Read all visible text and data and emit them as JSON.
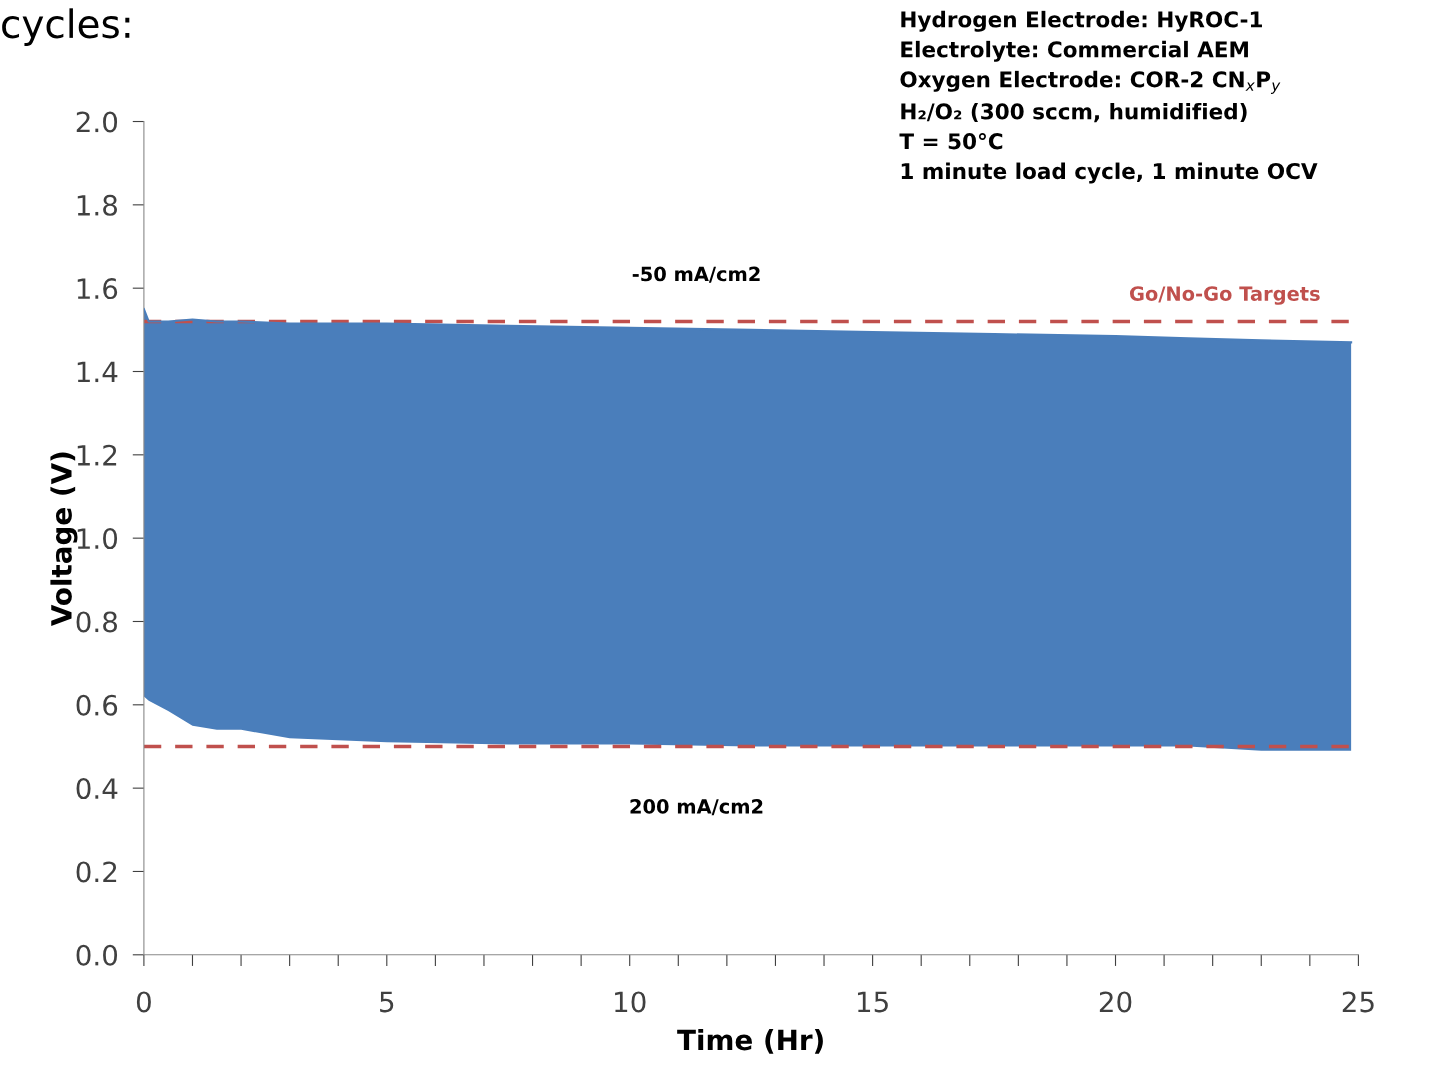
{
  "chart_data": {
    "type": "line",
    "xlabel": "Time (Hr)",
    "ylabel": "Voltage (V)",
    "x": [
      0,
      0.1,
      0.5,
      1,
      1.5,
      2,
      3,
      5,
      7.5,
      10,
      12.5,
      15,
      17.5,
      20,
      21.5,
      23,
      24.85
    ],
    "series": [
      {
        "color": "#4a7ebb",
        "values": [
          1.55,
          1.52,
          1.52,
          1.525,
          1.52,
          1.52,
          1.515,
          1.515,
          1.51,
          1.505,
          1.5,
          1.495,
          1.49,
          1.485,
          1.48,
          1.475,
          1.47
        ],
        "upper": [
          1.55,
          1.52,
          1.52,
          1.525,
          1.52,
          1.52,
          1.515,
          1.515,
          1.51,
          1.505,
          1.5,
          1.495,
          1.49,
          1.485,
          1.48,
          1.475,
          1.47
        ],
        "lower": [
          0.62,
          0.61,
          0.585,
          0.55,
          0.54,
          0.54,
          0.52,
          0.51,
          0.505,
          0.505,
          0.5,
          0.5,
          0.5,
          0.5,
          0.5,
          0.49,
          0.49
        ]
      }
    ],
    "xlim": [
      0,
      25
    ],
    "xticks": [
      0,
      {
        "value": 1,
        "label": null
      },
      {
        "value": 2,
        "label": null
      },
      {
        "value": 3,
        "label": null
      },
      {
        "value": 4,
        "label": null
      },
      5,
      {
        "value": 6,
        "label": null
      },
      {
        "value": 7,
        "label": null
      },
      {
        "value": 8,
        "label": null
      },
      {
        "value": 9,
        "label": null
      },
      10,
      {
        "value": 11,
        "label": null
      },
      {
        "value": 12,
        "label": null
      },
      {
        "value": 13,
        "label": null
      },
      {
        "value": 14,
        "label": null
      },
      15,
      {
        "value": 16,
        "label": null
      },
      {
        "value": 17,
        "label": null
      },
      {
        "value": 18,
        "label": null
      },
      {
        "value": 19,
        "label": null
      },
      20,
      {
        "value": 21,
        "label": null
      },
      {
        "value": 22,
        "label": null
      },
      {
        "value": 23,
        "label": null
      },
      {
        "value": 24,
        "label": null
      },
      25
    ],
    "ylim": [
      0,
      2.0
    ],
    "yticks": [
      {
        "value": 0,
        "label": "0.0"
      },
      {
        "value": 0.2,
        "label": "0.2"
      },
      {
        "value": 0.4,
        "label": "0.4"
      },
      {
        "value": 0.6,
        "label": "0.6"
      },
      {
        "value": 0.8,
        "label": "0.8"
      },
      {
        "value": 1.0,
        "label": "1.0"
      },
      {
        "value": 1.2,
        "label": "1.2"
      },
      {
        "value": 1.4,
        "label": "1.4"
      },
      {
        "value": 1.6,
        "label": "1.6"
      },
      {
        "value": 1.8,
        "label": "1.8"
      },
      {
        "value": 2.0,
        "label": "2.0"
      }
    ],
    "ref_lines": [
      {
        "axis": "y",
        "value": 1.52,
        "label": "Go/No-Go Targets",
        "color": "#c0504d",
        "line_style": "dashed"
      },
      {
        "axis": "y",
        "value": 0.5,
        "color": "#c0504d",
        "line_style": "dashed"
      }
    ],
    "annotations": [
      "cycles:",
      "-50 mA/cm2",
      "200 mA/cm2",
      "Hydrogen Electrode: HyROC-1\nElectrolyte: Commercial AEM\nOxygen Electrode: COR-2 CN$_{x}$P$_{y}$\nH₂/O₂ (300 sccm, humidified)\nT = 50°C\n1 minute load cycle, 1 minute OCV"
    ],
    "grid": false,
    "legend": false
  }
}
